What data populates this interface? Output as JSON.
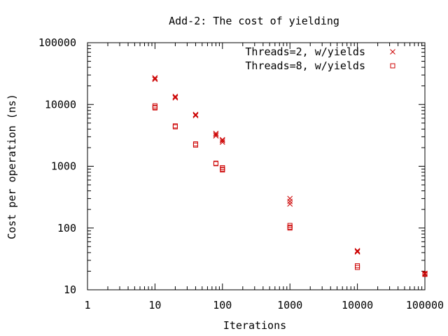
{
  "chart_data": {
    "type": "scatter",
    "title": "Add-2: The cost of yielding",
    "xlabel": "Iterations",
    "ylabel": "Cost per operation (ns)",
    "xscale": "log",
    "yscale": "log",
    "xlim": [
      1,
      100000
    ],
    "ylim": [
      10,
      100000
    ],
    "xticks": [
      1,
      10,
      100,
      1000,
      10000,
      100000
    ],
    "xtick_labels": [
      "1",
      "10",
      "100",
      "1000",
      "10000",
      "100000"
    ],
    "yticks": [
      10,
      100,
      1000,
      10000,
      100000
    ],
    "ytick_labels": [
      "10",
      "100",
      "1000",
      "10000",
      "100000"
    ],
    "grid": false,
    "legend_position": "top-right",
    "series": [
      {
        "name": "Threads=2, w/yields",
        "marker": "x",
        "color": "#cc0000",
        "points": [
          [
            10,
            27000
          ],
          [
            10,
            25500
          ],
          [
            10,
            26500
          ],
          [
            20,
            13500
          ],
          [
            20,
            12800
          ],
          [
            20,
            13000
          ],
          [
            40,
            6900
          ],
          [
            40,
            6600
          ],
          [
            40,
            6800
          ],
          [
            80,
            3400
          ],
          [
            80,
            3100
          ],
          [
            80,
            3250
          ],
          [
            100,
            2700
          ],
          [
            100,
            2450
          ],
          [
            100,
            2600
          ],
          [
            1000,
            300
          ],
          [
            1000,
            270
          ],
          [
            1000,
            245
          ],
          [
            10000,
            43
          ],
          [
            10000,
            41
          ],
          [
            10000,
            42
          ],
          [
            100000,
            18
          ],
          [
            100000,
            18.5
          ]
        ]
      },
      {
        "name": "Threads=8, w/yields",
        "marker": "square",
        "color": "#cc0000",
        "points": [
          [
            10,
            9500
          ],
          [
            10,
            9000
          ],
          [
            10,
            8800
          ],
          [
            20,
            4500
          ],
          [
            20,
            4350
          ],
          [
            40,
            2300
          ],
          [
            40,
            2200
          ],
          [
            80,
            1120
          ],
          [
            80,
            1100
          ],
          [
            100,
            950
          ],
          [
            100,
            900
          ],
          [
            100,
            870
          ],
          [
            1000,
            110
          ],
          [
            1000,
            103
          ],
          [
            1000,
            100
          ],
          [
            10000,
            24.5
          ],
          [
            10000,
            23
          ],
          [
            100000,
            18.2
          ],
          [
            100000,
            17.8
          ]
        ]
      }
    ]
  }
}
